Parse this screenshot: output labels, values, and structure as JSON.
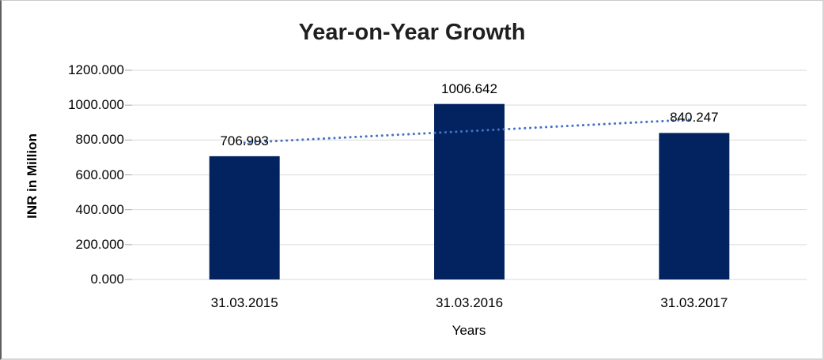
{
  "figure": {
    "title": "Year-on-Year Growth"
  },
  "chart_data": {
    "type": "bar",
    "title": "Year-on-Year Growth",
    "xlabel": "Years",
    "ylabel": "INR in Million",
    "categories": [
      "31.03.2015",
      "31.03.2016",
      "31.03.2017"
    ],
    "values": [
      706.993,
      1006.642,
      840.247
    ],
    "value_labels": [
      "706.993",
      "1006.642",
      "840.247"
    ],
    "ylim": [
      0,
      1200
    ],
    "y_ticks": [
      0,
      200,
      400,
      600,
      800,
      1000,
      1200
    ],
    "y_tick_labels": [
      "0.000",
      "200.000",
      "400.000",
      "600.000",
      "800.000",
      "1000.000",
      "1200.000"
    ],
    "grid": "horizontal",
    "legend": "none",
    "bar_color": "#032260",
    "gridline_color": "#d9d9d9",
    "tick_mark_color": "#a6a6a6",
    "trendline": {
      "type": "linear",
      "style": "dotted",
      "color": "#4472C4"
    }
  }
}
